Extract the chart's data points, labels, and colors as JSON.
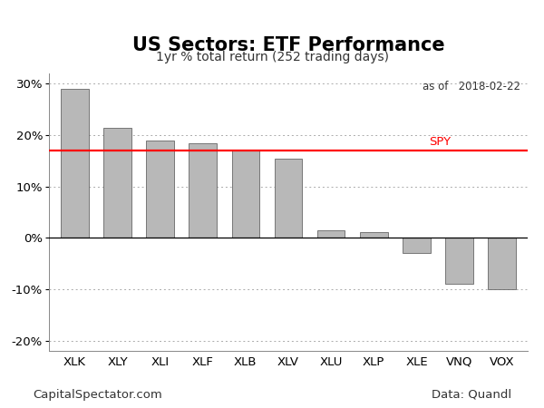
{
  "title": "US Sectors: ETF Performance",
  "subtitle": "1yr % total return (252 trading days)",
  "date_label": "as of   2018-02-22",
  "categories": [
    "XLK",
    "XLY",
    "XLI",
    "XLF",
    "XLB",
    "XLV",
    "XLU",
    "XLP",
    "XLE",
    "VNQ",
    "VOX"
  ],
  "values": [
    29.0,
    21.5,
    19.0,
    18.5,
    17.0,
    15.5,
    1.5,
    1.2,
    -3.0,
    -9.0,
    -10.0
  ],
  "spy_value": 17.0,
  "spy_label": "SPY",
  "bar_color": "#b8b8b8",
  "bar_edgecolor": "#666666",
  "spy_color": "#ff0000",
  "ylim": [
    -22,
    32
  ],
  "yticks": [
    -20,
    -10,
    0,
    10,
    20,
    30
  ],
  "grid_color": "#aaaaaa",
  "background_color": "#ffffff",
  "title_fontsize": 15,
  "subtitle_fontsize": 10,
  "tick_fontsize": 9.5,
  "footer_left": "CapitalSpectator.com",
  "footer_right": "Data: Quandl",
  "footer_fontsize": 9.5
}
